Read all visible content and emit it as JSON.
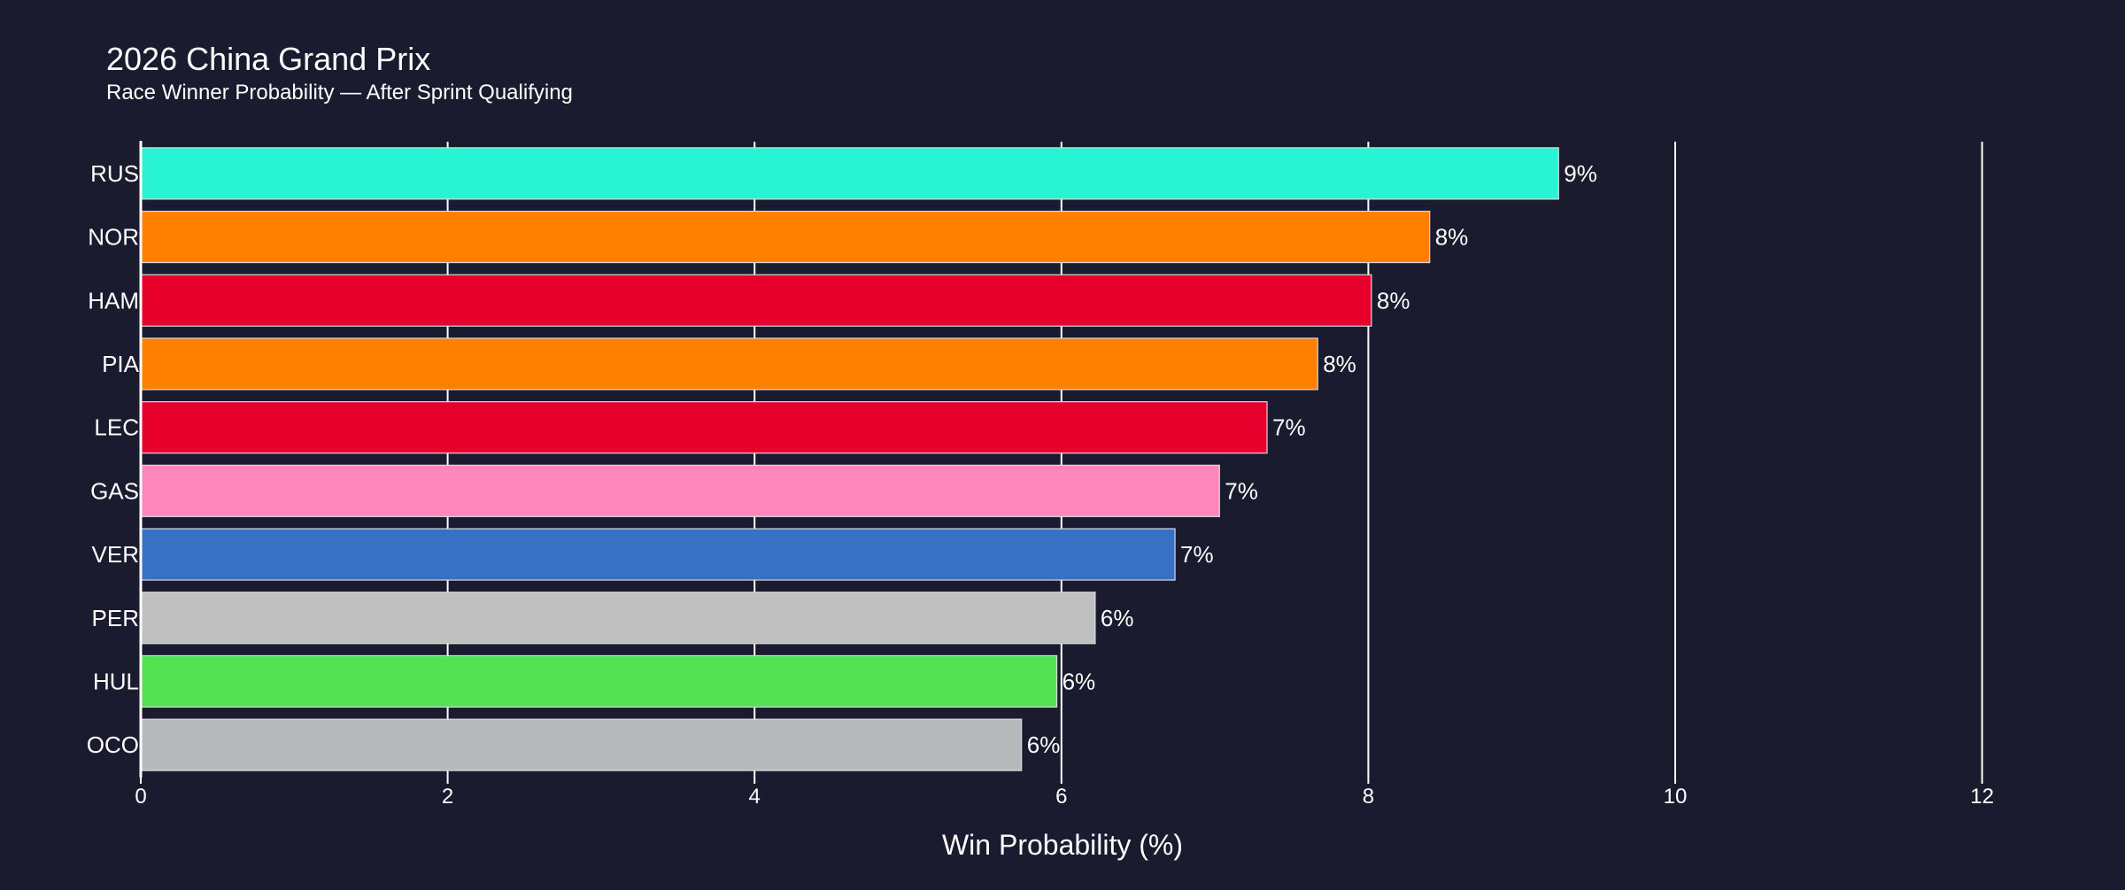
{
  "chart_data": {
    "type": "bar",
    "orientation": "horizontal",
    "title": "2026 China Grand Prix",
    "subtitle": "Race Winner Probability — After Sprint Qualifying",
    "xlabel": "Win Probability (%)",
    "ylabel": "",
    "xlim": [
      0,
      12.4
    ],
    "xticks": [
      "0",
      "2",
      "4",
      "6",
      "8",
      "10",
      "12"
    ],
    "grid": "vertical",
    "background": "#1a1b2e",
    "categories": [
      "RUS",
      "NOR",
      "HAM",
      "PIA",
      "LEC",
      "GAS",
      "VER",
      "PER",
      "HUL",
      "OCO"
    ],
    "values": [
      9.24,
      8.4,
      8.02,
      7.67,
      7.34,
      7.03,
      6.74,
      6.22,
      5.97,
      5.74
    ],
    "data_labels": [
      "9%",
      "8%",
      "8%",
      "8%",
      "7%",
      "7%",
      "7%",
      "6%",
      "6%",
      "6%"
    ],
    "colors": [
      "#27f4d2",
      "#ff8000",
      "#e8002d",
      "#ff8000",
      "#e8002d",
      "#ff87bc",
      "#3671c6",
      "#c0c0c0",
      "#52e252",
      "#b6babd"
    ]
  }
}
